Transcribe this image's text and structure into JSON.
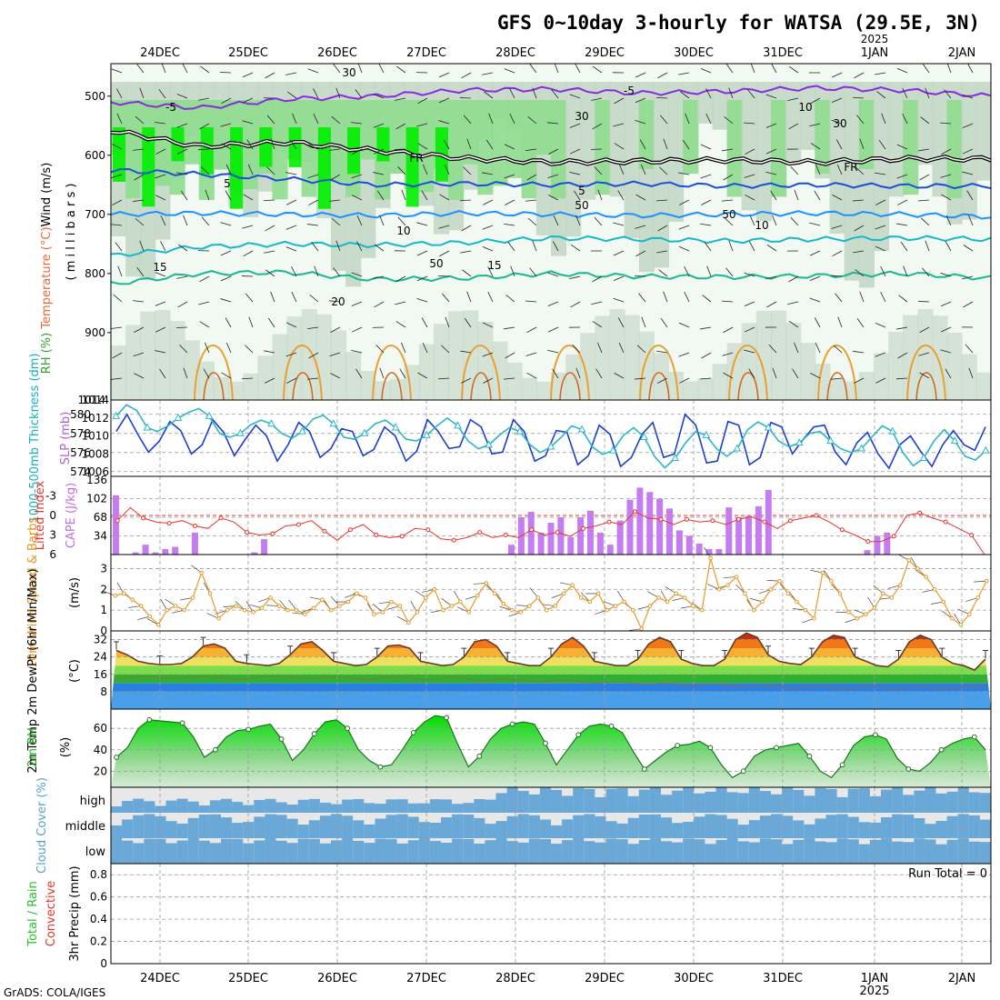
{
  "title": "GFS 0~10day 3-hourly for WATSA (29.5E, 3N)",
  "credit": "GrADS: COLA/IGES",
  "year_label": "2025",
  "colors": {
    "rh_light": "#e4f0e4",
    "rh_mid": "#c2d6c4",
    "rh_green": "#8fdc8f",
    "rh_bright": "#00ee00",
    "temp_purple": "#8a2be2",
    "temp_blue": "#1a4fd6",
    "temp_sky": "#1e90ff",
    "temp_cyan": "#17b8c8",
    "temp_teal": "#18b890",
    "temp_orange": "#e8a030",
    "temp_brown": "#d06a20",
    "freezing": "#000000",
    "slp": "#1c3fcf",
    "thickness": "#2ab6c4",
    "cape": "#c47cf0",
    "lifted": "#e8342c",
    "wind_speed": "#e89a2a",
    "dewpoint": "#b06030",
    "rh2m": "#00c800",
    "cloud": "#6aa8d8",
    "cloud_gap": "#e8e8e8",
    "convective": "#e8342c",
    "precip_total": "#28c828"
  },
  "chart_data": [
    {
      "type": "heatmap",
      "panel": "upper-air",
      "ylabel_parts": [
        "RH (%)",
        "Temperature (°C)",
        "Wind (m/s)"
      ],
      "ylabel_units": "( m i l l i b a r s )",
      "x": [
        "24DEC",
        "25DEC",
        "26DEC",
        "27DEC",
        "28DEC",
        "29DEC",
        "30DEC",
        "31DEC",
        "1JAN",
        "2JAN"
      ],
      "y_ticks": [
        500,
        600,
        700,
        800,
        900
      ],
      "ylim": [
        1014,
        445
      ],
      "contour_labels": [
        "-5",
        "-5",
        "5",
        "5",
        "10",
        "10",
        "15",
        "15",
        "20",
        "FR",
        "FR",
        "30",
        "30",
        "50",
        "50",
        "10",
        "30",
        "50"
      ],
      "isotherms": [
        {
          "label": "-5",
          "color": "temp_purple",
          "mb": [
            510,
            520,
            505,
            500,
            490,
            488,
            495,
            492,
            486,
            490,
            500
          ]
        },
        {
          "label": "FR",
          "color": "freezing",
          "mb": [
            558,
            585,
            578,
            592,
            605,
            612,
            610,
            608,
            612,
            606,
            606
          ]
        },
        {
          "label": "5",
          "color": "temp_blue",
          "mb": [
            625,
            632,
            640,
            650,
            648,
            650,
            648,
            652,
            650,
            652,
            652
          ]
        },
        {
          "label": "10",
          "color": "temp_sky",
          "mb": [
            700,
            698,
            700,
            702,
            698,
            700,
            702,
            700,
            698,
            700,
            704
          ]
        },
        {
          "label": "15",
          "color": "temp_cyan",
          "mb": [
            770,
            755,
            750,
            752,
            748,
            740,
            742,
            745,
            742,
            740,
            742
          ]
        },
        {
          "label": "20",
          "color": "temp_teal",
          "mb": [
            818,
            800,
            798,
            810,
            808,
            800,
            805,
            806,
            804,
            800,
            808
          ]
        }
      ]
    },
    {
      "type": "line",
      "panel": "slp-thickness",
      "ylabel_left": "1000-500mb Thickness (dm)",
      "ylabel_right": "SLP (mb)",
      "y_ticks_thickness": [
        574,
        576,
        578,
        580
      ],
      "y_ticks_slp": [
        1006,
        1008,
        1010,
        1012,
        1014
      ],
      "series": [
        {
          "name": "SLP",
          "axis": "slp",
          "values": [
            1010.5,
            1012.4,
            1010.2,
            1008.2,
            1009.4,
            1011.6,
            1010.6,
            1008.0,
            1009.0,
            1011.8,
            1010.4,
            1007.8,
            1009.6,
            1011.2,
            1010.0,
            1007.2,
            1009.0,
            1011.5,
            1010.5,
            1007.6,
            1008.6,
            1010.8,
            1010.5,
            1007.8,
            1008.5,
            1011.0,
            1010.0,
            1007.2,
            1008.3,
            1011.8,
            1010.5,
            1008.6,
            1008.8,
            1011.8,
            1011.0,
            1008.0,
            1008.2,
            1011.8,
            1010.5,
            1007.2,
            1007.8,
            1010.6,
            1010.4,
            1006.8,
            1007.8,
            1011.2,
            1010.2,
            1006.6,
            1007.6,
            1010.2,
            1011.5,
            1007.6,
            1008.0,
            1012.4,
            1011.2,
            1007.0,
            1007.2,
            1011.6,
            1011.2,
            1006.8,
            1007.6,
            1011.5,
            1011.0,
            1008.0,
            1009.6,
            1011.0,
            1011.2,
            1008.2,
            1006.8,
            1009.2,
            1010.4,
            1008.0,
            1006.4,
            1009.0,
            1010.0,
            1008.2,
            1006.6,
            1009.0,
            1010.6,
            1009.0,
            1008.4,
            1011.0
          ]
        },
        {
          "name": "Thickness",
          "axis": "thickness",
          "values": [
            579.8,
            581.0,
            580.4,
            578.6,
            578.2,
            578.8,
            579.6,
            580.2,
            580.6,
            579.8,
            578.0,
            577.6,
            578.0,
            578.9,
            579.4,
            579.0,
            578.0,
            577.5,
            578.2,
            579.5,
            579.9,
            579.0,
            577.6,
            577.4,
            578.0,
            579.0,
            579.4,
            578.6,
            577.4,
            577.2,
            577.8,
            578.8,
            579.6,
            578.8,
            577.2,
            576.4,
            576.8,
            577.8,
            578.6,
            578.2,
            576.8,
            576.0,
            576.6,
            577.6,
            578.8,
            578.4,
            576.6,
            575.8,
            576.2,
            577.8,
            578.6,
            577.6,
            575.6,
            574.4,
            575.4,
            577.0,
            578.2,
            577.8,
            576.4,
            575.6,
            576.4,
            578.4,
            579.2,
            578.6,
            577.2,
            576.6,
            577.0,
            578.0,
            578.2,
            577.2,
            576.4,
            576.0,
            576.4,
            577.6,
            578.8,
            578.2,
            576.0,
            574.6,
            575.4,
            577.2,
            578.4,
            577.2,
            575.6,
            575.2,
            576.2
          ]
        }
      ]
    },
    {
      "type": "bar",
      "panel": "cape-lifted-index",
      "ylabel_left": "Lifted Index",
      "ylabel_right": "CAPE (J/kg)",
      "y_ticks_li": [
        -3,
        0,
        3,
        6
      ],
      "y_ticks_cape": [
        34,
        68,
        102,
        136
      ],
      "series": [
        {
          "name": "CAPE",
          "axis": "cape",
          "values": [
            108,
            0,
            4,
            18,
            4,
            10,
            14,
            0,
            40,
            0,
            0,
            0,
            0,
            0,
            4,
            28,
            0,
            0,
            0,
            0,
            0,
            0,
            0,
            0,
            0,
            0,
            0,
            0,
            0,
            0,
            0,
            0,
            0,
            0,
            0,
            0,
            0,
            0,
            0,
            0,
            18,
            68,
            78,
            40,
            58,
            68,
            32,
            68,
            80,
            40,
            18,
            62,
            100,
            122,
            114,
            102,
            84,
            44,
            34,
            20,
            10,
            10,
            86,
            68,
            70,
            88,
            118,
            0,
            0,
            0,
            0,
            0,
            0,
            0,
            0,
            0,
            8,
            34,
            40,
            0,
            0,
            0,
            0,
            0,
            0,
            0,
            0,
            0,
            0
          ]
        },
        {
          "name": "Lifted Index",
          "axis": "li",
          "values": [
            0.8,
            -1.2,
            0.4,
            1.0,
            1.2,
            0.8,
            1.6,
            2.0,
            0.4,
            1.0,
            2.6,
            3.0,
            2.8,
            1.6,
            1.4,
            0.8,
            2.4,
            3.8,
            2.2,
            1.4,
            3.0,
            3.4,
            3.2,
            2.0,
            2.2,
            3.6,
            3.8,
            3.4,
            2.6,
            3.4,
            3.0,
            3.4,
            2.2,
            3.0,
            2.6,
            3.2,
            2.0,
            1.6,
            1.0,
            1.4,
            -0.6,
            0.4,
            0.6,
            1.4,
            0.6,
            1.0,
            0.8,
            1.4,
            0.6,
            0.2,
            1.0,
            2.0,
            0.8,
            0.4,
            0.0,
            1.0,
            2.2,
            3.0,
            4.0,
            4.0,
            3.2,
            0.0,
            -0.4,
            0.4,
            1.0,
            2.0,
            3.0,
            6.0
          ]
        }
      ]
    },
    {
      "type": "line",
      "panel": "wind-10m",
      "ylabel": "10m Wind Speed & Barbs",
      "units": "(m/s)",
      "y_ticks": [
        0,
        1,
        2,
        3
      ],
      "ylim": [
        0,
        3.5
      ],
      "series": [
        {
          "name": "Speed",
          "values": [
            1.7,
            1.8,
            1.5,
            1.2,
            0.7,
            0.3,
            1.0,
            1.2,
            1.0,
            1.6,
            2.8,
            1.8,
            0.6,
            1.0,
            1.2,
            1.0,
            0.9,
            1.1,
            1.6,
            1.2,
            1.0,
            1.0,
            0.8,
            1.1,
            1.5,
            1.0,
            1.2,
            1.4,
            1.8,
            1.6,
            0.8,
            0.9,
            1.4,
            1.2,
            0.4,
            0.9,
            1.6,
            2.0,
            1.0,
            1.2,
            1.4,
            0.9,
            1.7,
            2.3,
            1.8,
            1.3,
            1.0,
            0.9,
            1.2,
            1.6,
            1.0,
            1.2,
            1.8,
            2.2,
            1.6,
            1.4,
            1.8,
            1.0,
            1.2,
            1.4,
            1.0,
            0.1,
            1.2,
            1.6,
            1.4,
            1.8,
            1.6,
            1.2,
            1.0,
            3.5,
            2.0,
            2.2,
            2.6,
            1.8,
            1.0,
            1.4,
            2.0,
            2.4,
            1.8,
            1.4,
            1.0,
            0.6,
            2.8,
            2.4,
            1.8,
            0.9,
            0.6,
            0.8,
            1.1,
            1.8,
            1.6,
            2.2,
            3.4,
            3.0,
            2.6,
            2.0,
            1.4,
            0.6,
            0.3,
            0.8,
            1.6,
            2.4
          ]
        }
      ]
    },
    {
      "type": "area",
      "panel": "temp-2m",
      "ylabel": "2m Temp 2m DewPt (6hr Min/Max)",
      "units": "(°C)",
      "y_ticks": [
        8,
        16,
        24,
        32
      ],
      "ylim": [
        0,
        36
      ],
      "series": [
        {
          "name": "2m Temp",
          "values": [
            27,
            25,
            22,
            21,
            20.5,
            20.5,
            21,
            24,
            29,
            30,
            28,
            22,
            21,
            20.5,
            20,
            21,
            25,
            30,
            31,
            27,
            22,
            21,
            20,
            20.5,
            24,
            29,
            29.5,
            28,
            22,
            21,
            20,
            20.5,
            24,
            31,
            32,
            29,
            22,
            21,
            20,
            20,
            24,
            30,
            33,
            29,
            22,
            21,
            20,
            20,
            23,
            30,
            33,
            31,
            23,
            21,
            20,
            20,
            23,
            32,
            35,
            33,
            25,
            22,
            21,
            20.5,
            24,
            31,
            34,
            33,
            24,
            22,
            20,
            19.5,
            23,
            31,
            34,
            32,
            24,
            21,
            20,
            18,
            23
          ]
        },
        {
          "name": "2m DewPt",
          "values": [
            14,
            14.5,
            15,
            14.8,
            14.2,
            14.0,
            14.6,
            15,
            14.6,
            14.0,
            13.8,
            14.4,
            15,
            14.8,
            14.4,
            14.0,
            14.2,
            14.8,
            14.6,
            13.8,
            13.6,
            14.2,
            14.8,
            14.6,
            13.8,
            13.4,
            14.2,
            14.6,
            13.8,
            13.0,
            13.6,
            14.0,
            13.6,
            12.8,
            12.6,
            13.2,
            13.4,
            12.6,
            12.0,
            12.4,
            12.6,
            12.0,
            11.4,
            11.8,
            12.0,
            11.2,
            10.8,
            11.4,
            11.6,
            10.8,
            10.0,
            10.6,
            11.0,
            10.2,
            9.6,
            10.2,
            10.6,
            10.0,
            9.4,
            10.0,
            10.4,
            10.0,
            9.6,
            10.0,
            10.4,
            10.0,
            9.6,
            10.0,
            10.4,
            10.2
          ]
        }
      ]
    },
    {
      "type": "area",
      "panel": "rh-2m",
      "ylabel": "2m RH",
      "units": "(%)",
      "y_ticks": [
        20,
        40,
        60
      ],
      "ylim": [
        5,
        78
      ],
      "series": [
        {
          "name": "2m RH",
          "values": [
            33,
            42,
            60,
            68,
            67,
            66,
            65,
            52,
            33,
            40,
            52,
            58,
            59,
            62,
            64,
            50,
            30,
            40,
            55,
            66,
            68,
            60,
            40,
            30,
            24,
            26,
            40,
            56,
            66,
            72,
            70,
            46,
            24,
            34,
            50,
            60,
            64,
            66,
            64,
            46,
            26,
            40,
            54,
            62,
            64,
            62,
            56,
            38,
            22,
            30,
            38,
            44,
            45,
            48,
            42,
            26,
            14,
            20,
            34,
            40,
            42,
            44,
            46,
            34,
            20,
            14,
            26,
            44,
            52,
            54,
            50,
            32,
            22,
            20,
            28,
            40,
            46,
            50,
            52,
            40
          ]
        }
      ]
    },
    {
      "type": "heatmap",
      "panel": "cloud-cover",
      "ylabel": "Cloud Cover (%)",
      "rows": [
        "high",
        "middle",
        "low"
      ]
    },
    {
      "type": "bar",
      "panel": "precip-3hr",
      "ylabel_left": "Total / Rain",
      "ylabel_left2": "Convective",
      "ylabel": "3hr Precip (mm)",
      "y_ticks": [
        "0",
        "0.2",
        "0.4",
        "0.6",
        "0.8"
      ],
      "ylim": [
        0,
        0.9
      ],
      "run_total": "Run Total = 0",
      "series": [
        {
          "name": "Total",
          "values": []
        }
      ]
    }
  ]
}
